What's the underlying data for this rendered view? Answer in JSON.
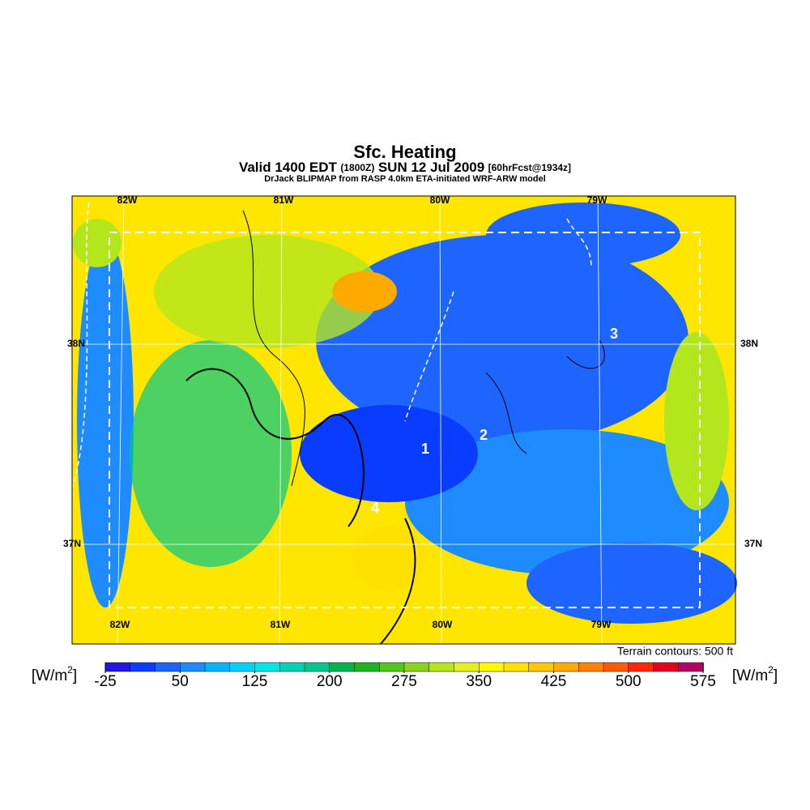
{
  "header": {
    "title": "Sfc. Heating",
    "valid": "Valid 1400 EDT",
    "zulu": "(1800Z)",
    "date": "SUN 12 Jul 2009",
    "forecast": "[60hrFcst@1934z]",
    "credit": "DrJack BLIPMAP from RASP 4.0km ETA-initiated WRF-ARW model"
  },
  "map": {
    "lon_top": [
      "82W",
      "81W",
      "80W",
      "79W"
    ],
    "lon_bottom": [
      "82W",
      "81W",
      "80W",
      "79W"
    ],
    "lat_left": [
      "38N",
      "37N"
    ],
    "lat_right": [
      "38N",
      "37N"
    ],
    "markers": [
      "1",
      "2",
      "3",
      "4"
    ],
    "contour_note": "Terrain contours: 500 ft"
  },
  "colorbar": {
    "unit": {
      "open": "[W/m",
      "sup": "2",
      "close": "]"
    },
    "min": -25,
    "max": 575,
    "ticks": [
      -25,
      50,
      125,
      200,
      275,
      350,
      425,
      500,
      575
    ],
    "colors": [
      "#2414e6",
      "#0a3cff",
      "#1e64ff",
      "#1e8cff",
      "#00b4ff",
      "#00d2ff",
      "#00e6e6",
      "#00d2b4",
      "#00c88c",
      "#00b450",
      "#1eb41e",
      "#50c81e",
      "#8cd21e",
      "#b4e61e",
      "#e6f01e",
      "#fffa00",
      "#ffe100",
      "#ffc800",
      "#ffaa00",
      "#ff8200",
      "#ff5a00",
      "#ff2800",
      "#e6001e",
      "#b40064"
    ]
  }
}
